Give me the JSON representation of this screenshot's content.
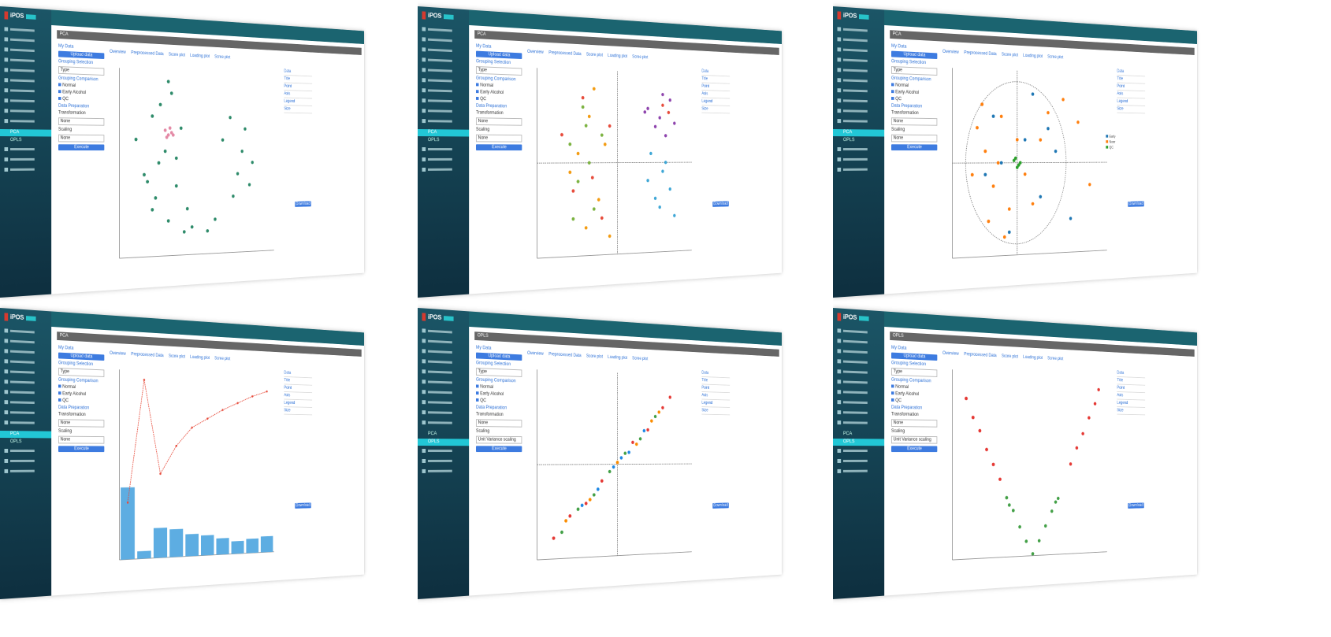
{
  "app": {
    "logo": "iPOS",
    "submenu": [
      "PCA",
      "OPLS"
    ]
  },
  "form": {
    "my_data": "My Data",
    "upload": "Upload data",
    "grouping_selection": "Grouping Selection",
    "type": "Type",
    "grouping_comparison": "Grouping Comparison",
    "groups": [
      "Normal",
      "Early Alcohol",
      "QC"
    ],
    "data_preparation": "Data Preparation",
    "transformation": "Transformation",
    "transformation_value": "None",
    "scaling": "Scaling",
    "execute": "Execute",
    "download": "Download",
    "tabs": [
      "Overview",
      "Preprocessed Data",
      "Score plot",
      "Loading plot",
      "Scree plot"
    ],
    "options": [
      "Data",
      "Title",
      "Point",
      "Axis",
      "Legend",
      "Size"
    ]
  },
  "panels": [
    {
      "page": "PCA",
      "scaling_value": "None",
      "plot": {
        "type": "scatter",
        "xlim": [
          -50,
          50
        ],
        "ylim": [
          -40,
          40
        ],
        "series": [
          {
            "color": "#2e8b6a",
            "x": [
              -40,
              -35,
              -30,
              -28,
              -25,
              -22,
              -20,
              -18,
              -15,
              -12,
              -30,
              -26,
              -10,
              -8,
              15,
              20,
              25,
              30,
              35,
              22,
              28,
              33,
              10,
              5,
              -5,
              -20,
              -33,
              -15
            ],
            "y": [
              10,
              -5,
              20,
              -15,
              25,
              5,
              -25,
              30,
              -10,
              15,
              -20,
              0,
              -30,
              -20,
              10,
              20,
              -5,
              15,
              0,
              -15,
              5,
              -10,
              -25,
              -30,
              -28,
              35,
              -8,
              2
            ]
          },
          {
            "color": "#e48aa6",
            "x": [
              -22,
              -20,
              -18,
              -21,
              -19,
              -17
            ],
            "y": [
              14,
              12,
              13,
              11,
              15,
              12
            ]
          }
        ]
      }
    },
    {
      "page": "PCA",
      "scaling_value": "None",
      "plot": {
        "type": "scatter",
        "xlim": [
          -50,
          50
        ],
        "ylim": [
          -50,
          50
        ],
        "crosshair": true,
        "series": [
          {
            "color": "#3fa7d6",
            "x": [
              20,
              25,
              30,
              35,
              28,
              22,
              32,
              38
            ],
            "y": [
              -10,
              -20,
              -5,
              -15,
              -25,
              5,
              0,
              -30
            ]
          },
          {
            "color": "#7cb342",
            "x": [
              -30,
              -25,
              -20,
              -15,
              -28,
              -18,
              -22,
              -10
            ],
            "y": [
              10,
              -10,
              20,
              -25,
              -30,
              0,
              30,
              15
            ]
          },
          {
            "color": "#f39c12",
            "x": [
              -20,
              -12,
              -25,
              -5,
              -18,
              -30,
              -8,
              -15
            ],
            "y": [
              -35,
              -20,
              5,
              -40,
              25,
              -5,
              10,
              40
            ]
          },
          {
            "color": "#8e44ad",
            "x": [
              20,
              28,
              35,
              25,
              32,
              18,
              30,
              38
            ],
            "y": [
              30,
              25,
              35,
              20,
              15,
              28,
              38,
              22
            ]
          },
          {
            "color": "#e74c3c",
            "x": [
              -35,
              -28,
              -10,
              -22,
              30,
              34,
              -16,
              -5
            ],
            "y": [
              15,
              -15,
              -30,
              35,
              32,
              28,
              -8,
              20
            ]
          }
        ]
      }
    },
    {
      "page": "PCA",
      "scaling_value": "None",
      "plot": {
        "type": "scatter",
        "xlim": [
          -40,
          60
        ],
        "ylim": [
          -40,
          40
        ],
        "crosshair": true,
        "circle": true,
        "series": [
          {
            "name": "Early Alcohol",
            "color": "#1f77b4",
            "x": [
              -15,
              -5,
              5,
              15,
              25,
              -20,
              10,
              35,
              -10,
              20
            ],
            "y": [
              20,
              -30,
              10,
              -15,
              5,
              -5,
              30,
              -25,
              0,
              15
            ]
          },
          {
            "name": "Normal",
            "color": "#ff7f0e",
            "x": [
              -25,
              -20,
              -15,
              -10,
              -5,
              0,
              -18,
              -12,
              -22,
              5,
              10,
              20,
              30,
              40,
              48,
              -8,
              -28,
              15
            ],
            "y": [
              15,
              5,
              -10,
              20,
              -20,
              10,
              -25,
              0,
              25,
              -5,
              -18,
              22,
              28,
              18,
              -10,
              -32,
              -5,
              10
            ]
          },
          {
            "name": "QC",
            "color": "#2ca02c",
            "x": [
              -2,
              0,
              2,
              -1,
              1
            ],
            "y": [
              1,
              -2,
              0,
              2,
              -1
            ]
          }
        ]
      }
    },
    {
      "page": "PCA",
      "scaling_value": "None",
      "plot": {
        "type": "bar-line",
        "ylim": [
          0,
          100
        ],
        "bars": {
          "color": "#5dade2",
          "values": [
            38,
            4,
            16,
            15,
            12,
            11,
            9,
            7,
            8,
            9
          ]
        },
        "line": {
          "color": "#e74c3c",
          "values": [
            30,
            95,
            45,
            60,
            70,
            75,
            80,
            84,
            88,
            91
          ]
        }
      }
    },
    {
      "page": "OPLS",
      "scaling_value": "Unit Variance scaling",
      "plot": {
        "type": "scatter",
        "xlim": [
          -1,
          1
        ],
        "ylim": [
          -1,
          1
        ],
        "crosshair": true,
        "series": [
          {
            "color": "#e53935",
            "x": [
              -0.8,
              -0.6,
              -0.4,
              -0.2,
              0.2,
              0.4,
              0.6,
              0.7
            ],
            "y": [
              -0.78,
              -0.55,
              -0.42,
              -0.18,
              0.24,
              0.38,
              0.63,
              0.75
            ]
          },
          {
            "color": "#43a047",
            "x": [
              -0.7,
              -0.5,
              -0.3,
              -0.1,
              0.1,
              0.3,
              0.5
            ],
            "y": [
              -0.72,
              -0.48,
              -0.33,
              -0.08,
              0.12,
              0.28,
              0.53
            ]
          },
          {
            "color": "#1e88e5",
            "x": [
              -0.45,
              -0.25,
              -0.05,
              0.05,
              0.15,
              0.35
            ],
            "y": [
              -0.44,
              -0.27,
              -0.03,
              0.07,
              0.13,
              0.37
            ]
          },
          {
            "color": "#fb8c00",
            "x": [
              -0.65,
              -0.35,
              0,
              0.25,
              0.45,
              0.55
            ],
            "y": [
              -0.6,
              -0.38,
              0.02,
              0.22,
              0.48,
              0.58
            ]
          }
        ]
      }
    },
    {
      "page": "OPLS",
      "scaling_value": "Unit Variance scaling",
      "plot": {
        "type": "scatter",
        "xlim": [
          -6,
          6
        ],
        "ylim": [
          0,
          10
        ],
        "series": [
          {
            "color": "#e53935",
            "x": [
              -5,
              -4.5,
              -4,
              -3.5,
              -3,
              -2.5,
              3,
              3.5,
              4,
              4.5,
              5,
              5.3
            ],
            "y": [
              8.5,
              7.5,
              6.8,
              5.8,
              5,
              4.2,
              5,
              5.9,
              6.7,
              7.6,
              8.4,
              9.2
            ]
          },
          {
            "color": "#43a047",
            "x": [
              -2,
              -1.5,
              -1,
              -0.5,
              0,
              0.5,
              1,
              1.5,
              2,
              -1.8,
              1.8
            ],
            "y": [
              3.2,
              2.5,
              1.6,
              0.8,
              0.1,
              0.8,
              1.6,
              2.4,
              3.1,
              2.8,
              2.9
            ]
          }
        ]
      }
    }
  ]
}
